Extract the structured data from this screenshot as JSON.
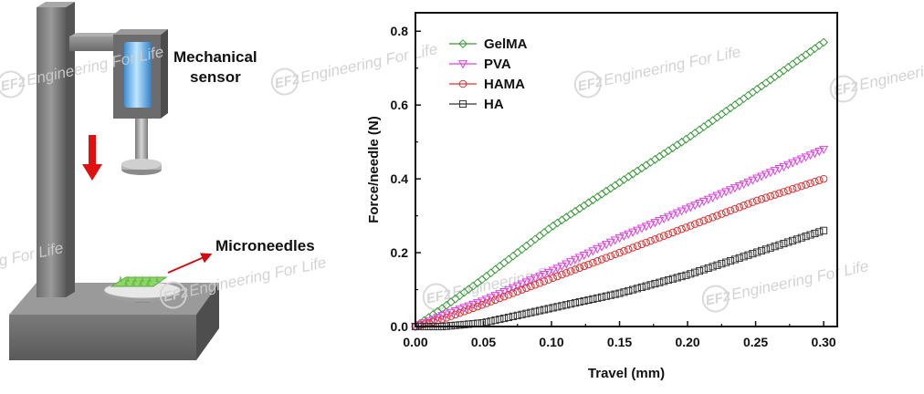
{
  "apparatus": {
    "sensor_label_line1": "Mechanical",
    "sensor_label_line2": "sensor",
    "sample_label": "Microneedles"
  },
  "watermark": {
    "badge": "EF2",
    "text": "Engineering For Life"
  },
  "colors": {
    "gelma": "#3a9a3a",
    "pva": "#e040e0",
    "hama": "#e03030",
    "ha": "#333333",
    "arrow": "#e01010"
  },
  "chart_data": {
    "type": "line",
    "title": "",
    "xlabel": "Travel (mm)",
    "ylabel": "Force/needle (N)",
    "xlim": [
      0.0,
      0.31
    ],
    "ylim": [
      0.0,
      0.85
    ],
    "xticks": [
      "0.00",
      "0.05",
      "0.10",
      "0.15",
      "0.20",
      "0.25",
      "0.30"
    ],
    "yticks": [
      "0.0",
      "0.2",
      "0.4",
      "0.6",
      "0.8"
    ],
    "legend_position": "top-left",
    "series": [
      {
        "name": "GelMA",
        "marker": "diamond",
        "color": "#3a9a3a",
        "x": [
          0.0,
          0.02,
          0.05,
          0.1,
          0.15,
          0.2,
          0.25,
          0.3
        ],
        "y": [
          0.0,
          0.05,
          0.13,
          0.27,
          0.39,
          0.51,
          0.64,
          0.77
        ]
      },
      {
        "name": "PVA",
        "marker": "triangle-down",
        "color": "#e040e0",
        "x": [
          0.0,
          0.02,
          0.05,
          0.1,
          0.15,
          0.2,
          0.25,
          0.3
        ],
        "y": [
          0.0,
          0.03,
          0.07,
          0.15,
          0.24,
          0.32,
          0.4,
          0.48
        ]
      },
      {
        "name": "HAMA",
        "marker": "circle",
        "color": "#e03030",
        "x": [
          0.0,
          0.02,
          0.05,
          0.1,
          0.15,
          0.2,
          0.25,
          0.3
        ],
        "y": [
          0.0,
          0.02,
          0.06,
          0.13,
          0.2,
          0.27,
          0.34,
          0.4
        ]
      },
      {
        "name": "HA",
        "marker": "square",
        "color": "#333333",
        "x": [
          0.0,
          0.02,
          0.05,
          0.1,
          0.15,
          0.2,
          0.25,
          0.3
        ],
        "y": [
          0.0,
          0.0,
          0.01,
          0.05,
          0.09,
          0.14,
          0.2,
          0.26
        ]
      }
    ]
  }
}
